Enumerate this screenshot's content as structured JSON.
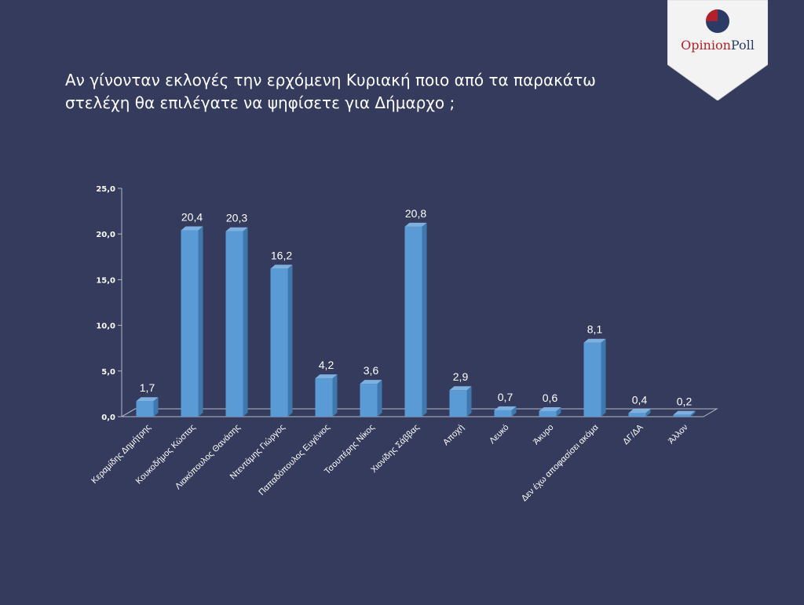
{
  "logo": {
    "brand_a": "Opinion",
    "brand_b": "Poll"
  },
  "title": {
    "line1": "Αν γίνονταν εκλογές την ερχόμενη Κυριακή ποιο από τα παρακάτω",
    "line2": "στελέχη θα επιλέγατε να ψηφίσετε για Δήμαρχο ;"
  },
  "colors": {
    "background": "#353b5c",
    "bar_front": "#5b9bd5",
    "bar_side": "#3f78ad",
    "bar_top": "#7fb1e0",
    "logo_red": "#b3202a",
    "logo_navy": "#2c3a66"
  },
  "chart_data": {
    "type": "bar",
    "categories": [
      "Κεραμίδης Δημήτρης",
      "Κουκοδήμος Κώστας",
      "Λιακόπουλος Θανάσης",
      "Ντεντάμης Γιώργος",
      "Παπαδόπουλος Ευγένιος",
      "Τσουπέρης Νίκος",
      "Χιονίδης Σάββας",
      "Αποχή",
      "Λευκό",
      "Άκυρο",
      "Δεν έχω αποφασίσει ακόμα",
      "ΔΓ/ΔΑ",
      "Άλλον"
    ],
    "values": [
      1.7,
      20.4,
      20.3,
      16.2,
      4.2,
      3.6,
      20.8,
      2.9,
      0.7,
      0.6,
      8.1,
      0.4,
      0.2
    ],
    "value_labels": [
      "1,7",
      "20,4",
      "20,3",
      "16,2",
      "4,2",
      "3,6",
      "20,8",
      "2,9",
      "0,7",
      "0,6",
      "8,1",
      "0,4",
      "0,2"
    ],
    "yticks": [
      0,
      5,
      10,
      15,
      20,
      25
    ],
    "ytick_labels": [
      "0,0",
      "5,0",
      "10,0",
      "15,0",
      "20,0",
      "25,0"
    ],
    "ylim": [
      0,
      25
    ],
    "grid": false,
    "legend": "none"
  }
}
